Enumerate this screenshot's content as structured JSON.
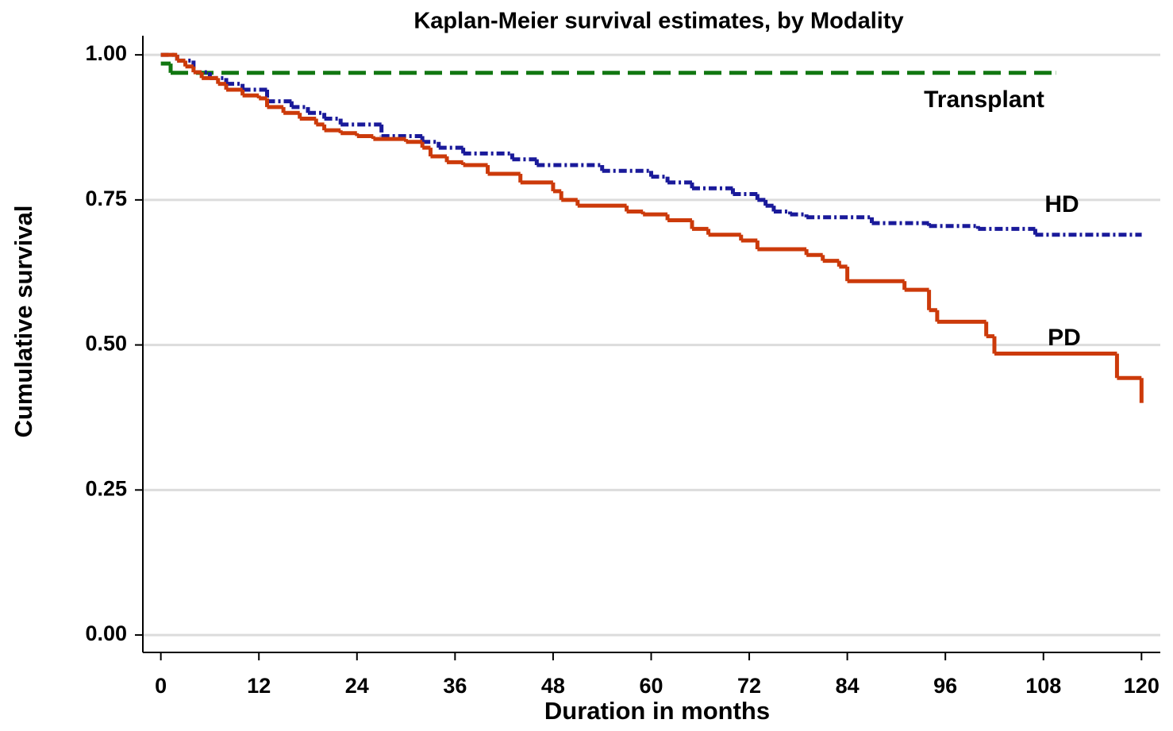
{
  "chart_data": {
    "type": "step",
    "title": "Kaplan-Meier survival estimates, by Modality",
    "x_label": "Duration in months",
    "y_label": "Cumulative survival",
    "xlim": [
      -2.2,
      122.3
    ],
    "ylim": [
      -0.03,
      1.033
    ],
    "xticks": [
      0,
      12,
      24,
      36,
      48,
      60,
      72,
      84,
      96,
      108,
      120
    ],
    "yticks": [
      {
        "value": 0,
        "label": "0.00"
      },
      {
        "value": 0.25,
        "label": "0.25"
      },
      {
        "value": 0.5,
        "label": "0.50"
      },
      {
        "value": 0.75,
        "label": "0.75"
      },
      {
        "value": 1,
        "label": "1.00"
      }
    ],
    "grid": true,
    "series": [
      {
        "name": "Transplant",
        "color": "#117711",
        "dash": "dashed",
        "x": [
          0,
          1.2,
          109.5
        ],
        "values": [
          0.985,
          0.969,
          0.969
        ]
      },
      {
        "name": "HD",
        "color": "#1a1a9a",
        "dash": "dashdot",
        "x": [
          0,
          2,
          4,
          6,
          8,
          10,
          13,
          16,
          18,
          20,
          22,
          27,
          32,
          34,
          37,
          43,
          46,
          54,
          60,
          62,
          65,
          70,
          73,
          74,
          75,
          77,
          79,
          87,
          94,
          100,
          107,
          120
        ],
        "values": [
          1.0,
          0.99,
          0.97,
          0.96,
          0.95,
          0.94,
          0.92,
          0.91,
          0.9,
          0.89,
          0.88,
          0.86,
          0.85,
          0.84,
          0.83,
          0.82,
          0.81,
          0.8,
          0.79,
          0.78,
          0.77,
          0.76,
          0.75,
          0.74,
          0.73,
          0.725,
          0.72,
          0.71,
          0.705,
          0.7,
          0.69,
          0.69
        ]
      },
      {
        "name": "PD",
        "color": "#cc3a0a",
        "dash": "solid",
        "x": [
          0,
          1,
          2,
          3,
          4,
          5,
          7,
          8,
          10,
          12,
          13,
          15,
          17,
          19,
          20,
          22,
          24,
          26,
          30,
          32,
          33,
          35,
          37,
          40,
          44,
          48,
          49,
          51,
          57,
          59,
          62,
          65,
          67,
          71,
          73,
          79,
          81,
          83,
          84,
          91,
          94,
          95,
          101,
          102,
          117,
          120
        ],
        "values": [
          1.0,
          1.0,
          0.99,
          0.98,
          0.97,
          0.96,
          0.95,
          0.94,
          0.93,
          0.925,
          0.91,
          0.9,
          0.89,
          0.88,
          0.87,
          0.865,
          0.86,
          0.855,
          0.85,
          0.84,
          0.825,
          0.815,
          0.81,
          0.795,
          0.78,
          0.765,
          0.75,
          0.74,
          0.73,
          0.725,
          0.715,
          0.7,
          0.69,
          0.68,
          0.665,
          0.655,
          0.645,
          0.635,
          0.61,
          0.595,
          0.56,
          0.54,
          0.515,
          0.485,
          0.443,
          0.4
        ]
      }
    ]
  }
}
